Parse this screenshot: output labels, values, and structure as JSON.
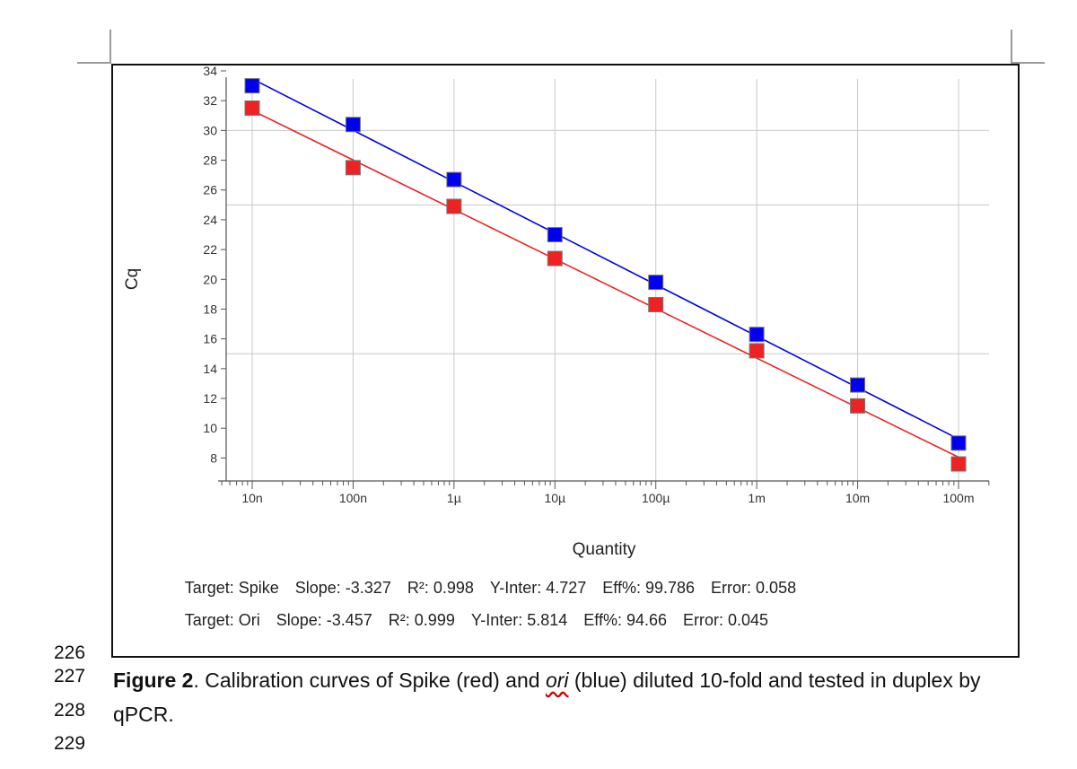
{
  "chart_data": {
    "type": "line",
    "xlabel": "Quantity",
    "ylabel": "Cq",
    "x_scale": "log",
    "xlim": [
      1e-08,
      0.1
    ],
    "ylim": [
      7,
      34
    ],
    "x_ticks": [
      {
        "value": 1e-08,
        "label": "10n"
      },
      {
        "value": 1e-07,
        "label": "100n"
      },
      {
        "value": 1e-06,
        "label": "1µ"
      },
      {
        "value": 1e-05,
        "label": "10µ"
      },
      {
        "value": 0.0001,
        "label": "100µ"
      },
      {
        "value": 0.001,
        "label": "1m"
      },
      {
        "value": 0.01,
        "label": "10m"
      },
      {
        "value": 0.1,
        "label": "100m"
      }
    ],
    "y_ticks": [
      8,
      10,
      12,
      14,
      16,
      18,
      20,
      22,
      24,
      26,
      28,
      30,
      32,
      34
    ],
    "series": [
      {
        "name": "Ori",
        "color": "#0000ee",
        "x": [
          1e-08,
          1e-07,
          1e-06,
          1e-05,
          0.0001,
          0.001,
          0.01,
          0.1
        ],
        "y": [
          33.0,
          30.4,
          26.7,
          23.0,
          19.8,
          16.3,
          12.9,
          9.0
        ],
        "fit": {
          "slope": -3.457,
          "intercept": 5.814
        }
      },
      {
        "name": "Spike",
        "color": "#ee2222",
        "x": [
          1e-08,
          1e-07,
          1e-06,
          1e-05,
          0.0001,
          0.001,
          0.01,
          0.1
        ],
        "y": [
          31.5,
          27.5,
          24.9,
          21.4,
          18.3,
          15.2,
          11.5,
          7.6
        ],
        "fit": {
          "slope": -3.327,
          "intercept": 4.727
        }
      }
    ]
  },
  "stats": {
    "spike": [
      "Target: Spike",
      "Slope: -3.327",
      "R²: 0.998",
      "Y-Inter: 4.727",
      "Eff%: 99.786",
      "Error: 0.058"
    ],
    "ori": [
      "Target: Ori",
      "Slope: -3.457",
      "R²: 0.999",
      "Y-Inter: 5.814",
      "Eff%: 94.66",
      "Error: 0.045"
    ]
  },
  "line_numbers": [
    "226",
    "227",
    "228",
    "229"
  ],
  "caption": {
    "label": "Figure 2",
    "text_1": ". Calibration curves of Spike (red) and ",
    "ori": "ori",
    "text_2": " (blue) diluted 10-fold and tested in duplex by qPCR."
  }
}
